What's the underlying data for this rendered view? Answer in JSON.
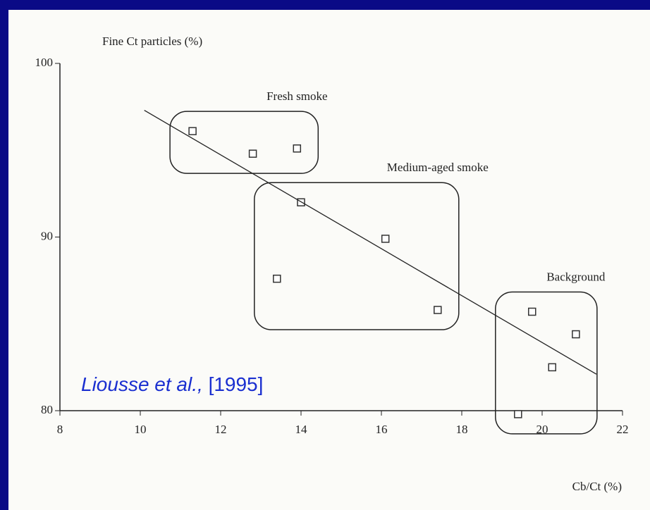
{
  "chart_data": {
    "type": "scatter",
    "y_label": "Fine Ct particles (%)",
    "x_label": "Cb/Ct (%)",
    "xlim": [
      8,
      22
    ],
    "xticks": [
      8,
      10,
      12,
      14,
      16,
      18,
      20,
      22
    ],
    "ylim": [
      80,
      100
    ],
    "yticks": [
      80,
      90,
      100
    ],
    "series": [
      {
        "name": "Fresh smoke",
        "color": "#333333",
        "x": [
          11.3,
          12.8,
          13.9
        ],
        "y": [
          96.1,
          94.8,
          95.1
        ]
      },
      {
        "name": "Medium-aged smoke",
        "color": "#333333",
        "x": [
          14.0,
          16.1,
          13.4,
          17.4
        ],
        "y": [
          92.0,
          89.9,
          87.6,
          85.8
        ]
      },
      {
        "name": "Background",
        "color": "#333333",
        "x": [
          19.75,
          20.84,
          20.25,
          19.4
        ],
        "y": [
          85.7,
          84.4,
          82.5,
          79.8
        ]
      }
    ],
    "trend_line": {
      "x": [
        10.1,
        21.35
      ],
      "y": [
        97.3,
        82.1
      ]
    },
    "citation": {
      "authors": "Liousse et al.,",
      "year": "[1995]"
    }
  }
}
